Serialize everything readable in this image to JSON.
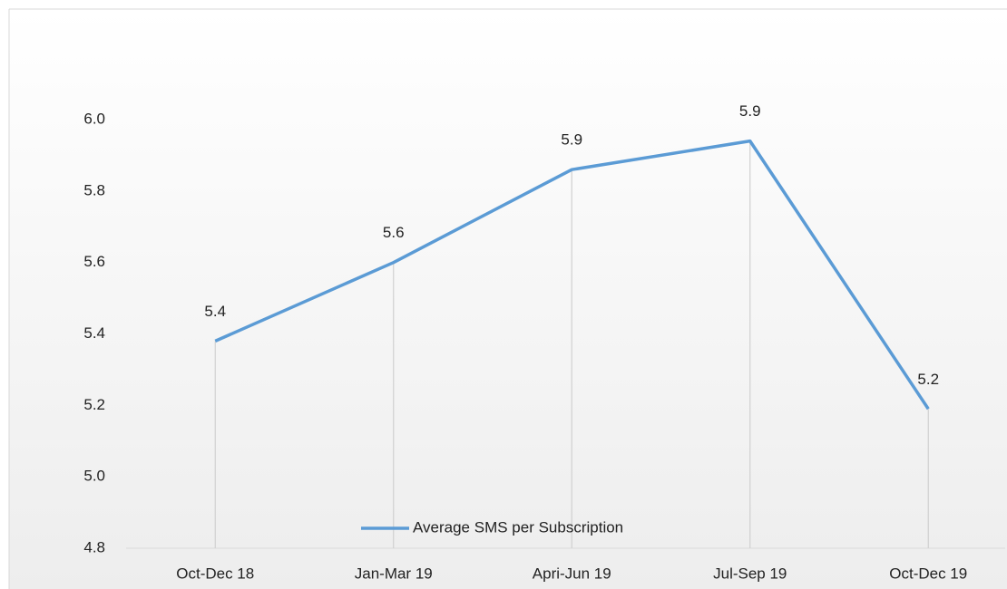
{
  "chart_data": {
    "type": "line",
    "categories": [
      "Oct-Dec 18",
      "Jan-Mar 19",
      "Apri-Jun 19",
      "Jul-Sep 19",
      "Oct-Dec 19"
    ],
    "series": [
      {
        "name": "Average SMS per Subscription",
        "color": "#5b9bd5",
        "values": [
          5.38,
          5.6,
          5.86,
          5.94,
          5.19
        ],
        "value_labels": [
          "5.4",
          "5.6",
          "5.9",
          "5.9",
          "5.2"
        ]
      }
    ],
    "ylim": [
      4.8,
      6.0
    ],
    "yticks": [
      4.8,
      {
        "value": 5.0,
        "label": "5.0"
      },
      5.2,
      5.4,
      5.6,
      5.8,
      {
        "value": 6.0,
        "label": "6.0"
      }
    ],
    "drop_lines": true,
    "legend": "bottom"
  }
}
